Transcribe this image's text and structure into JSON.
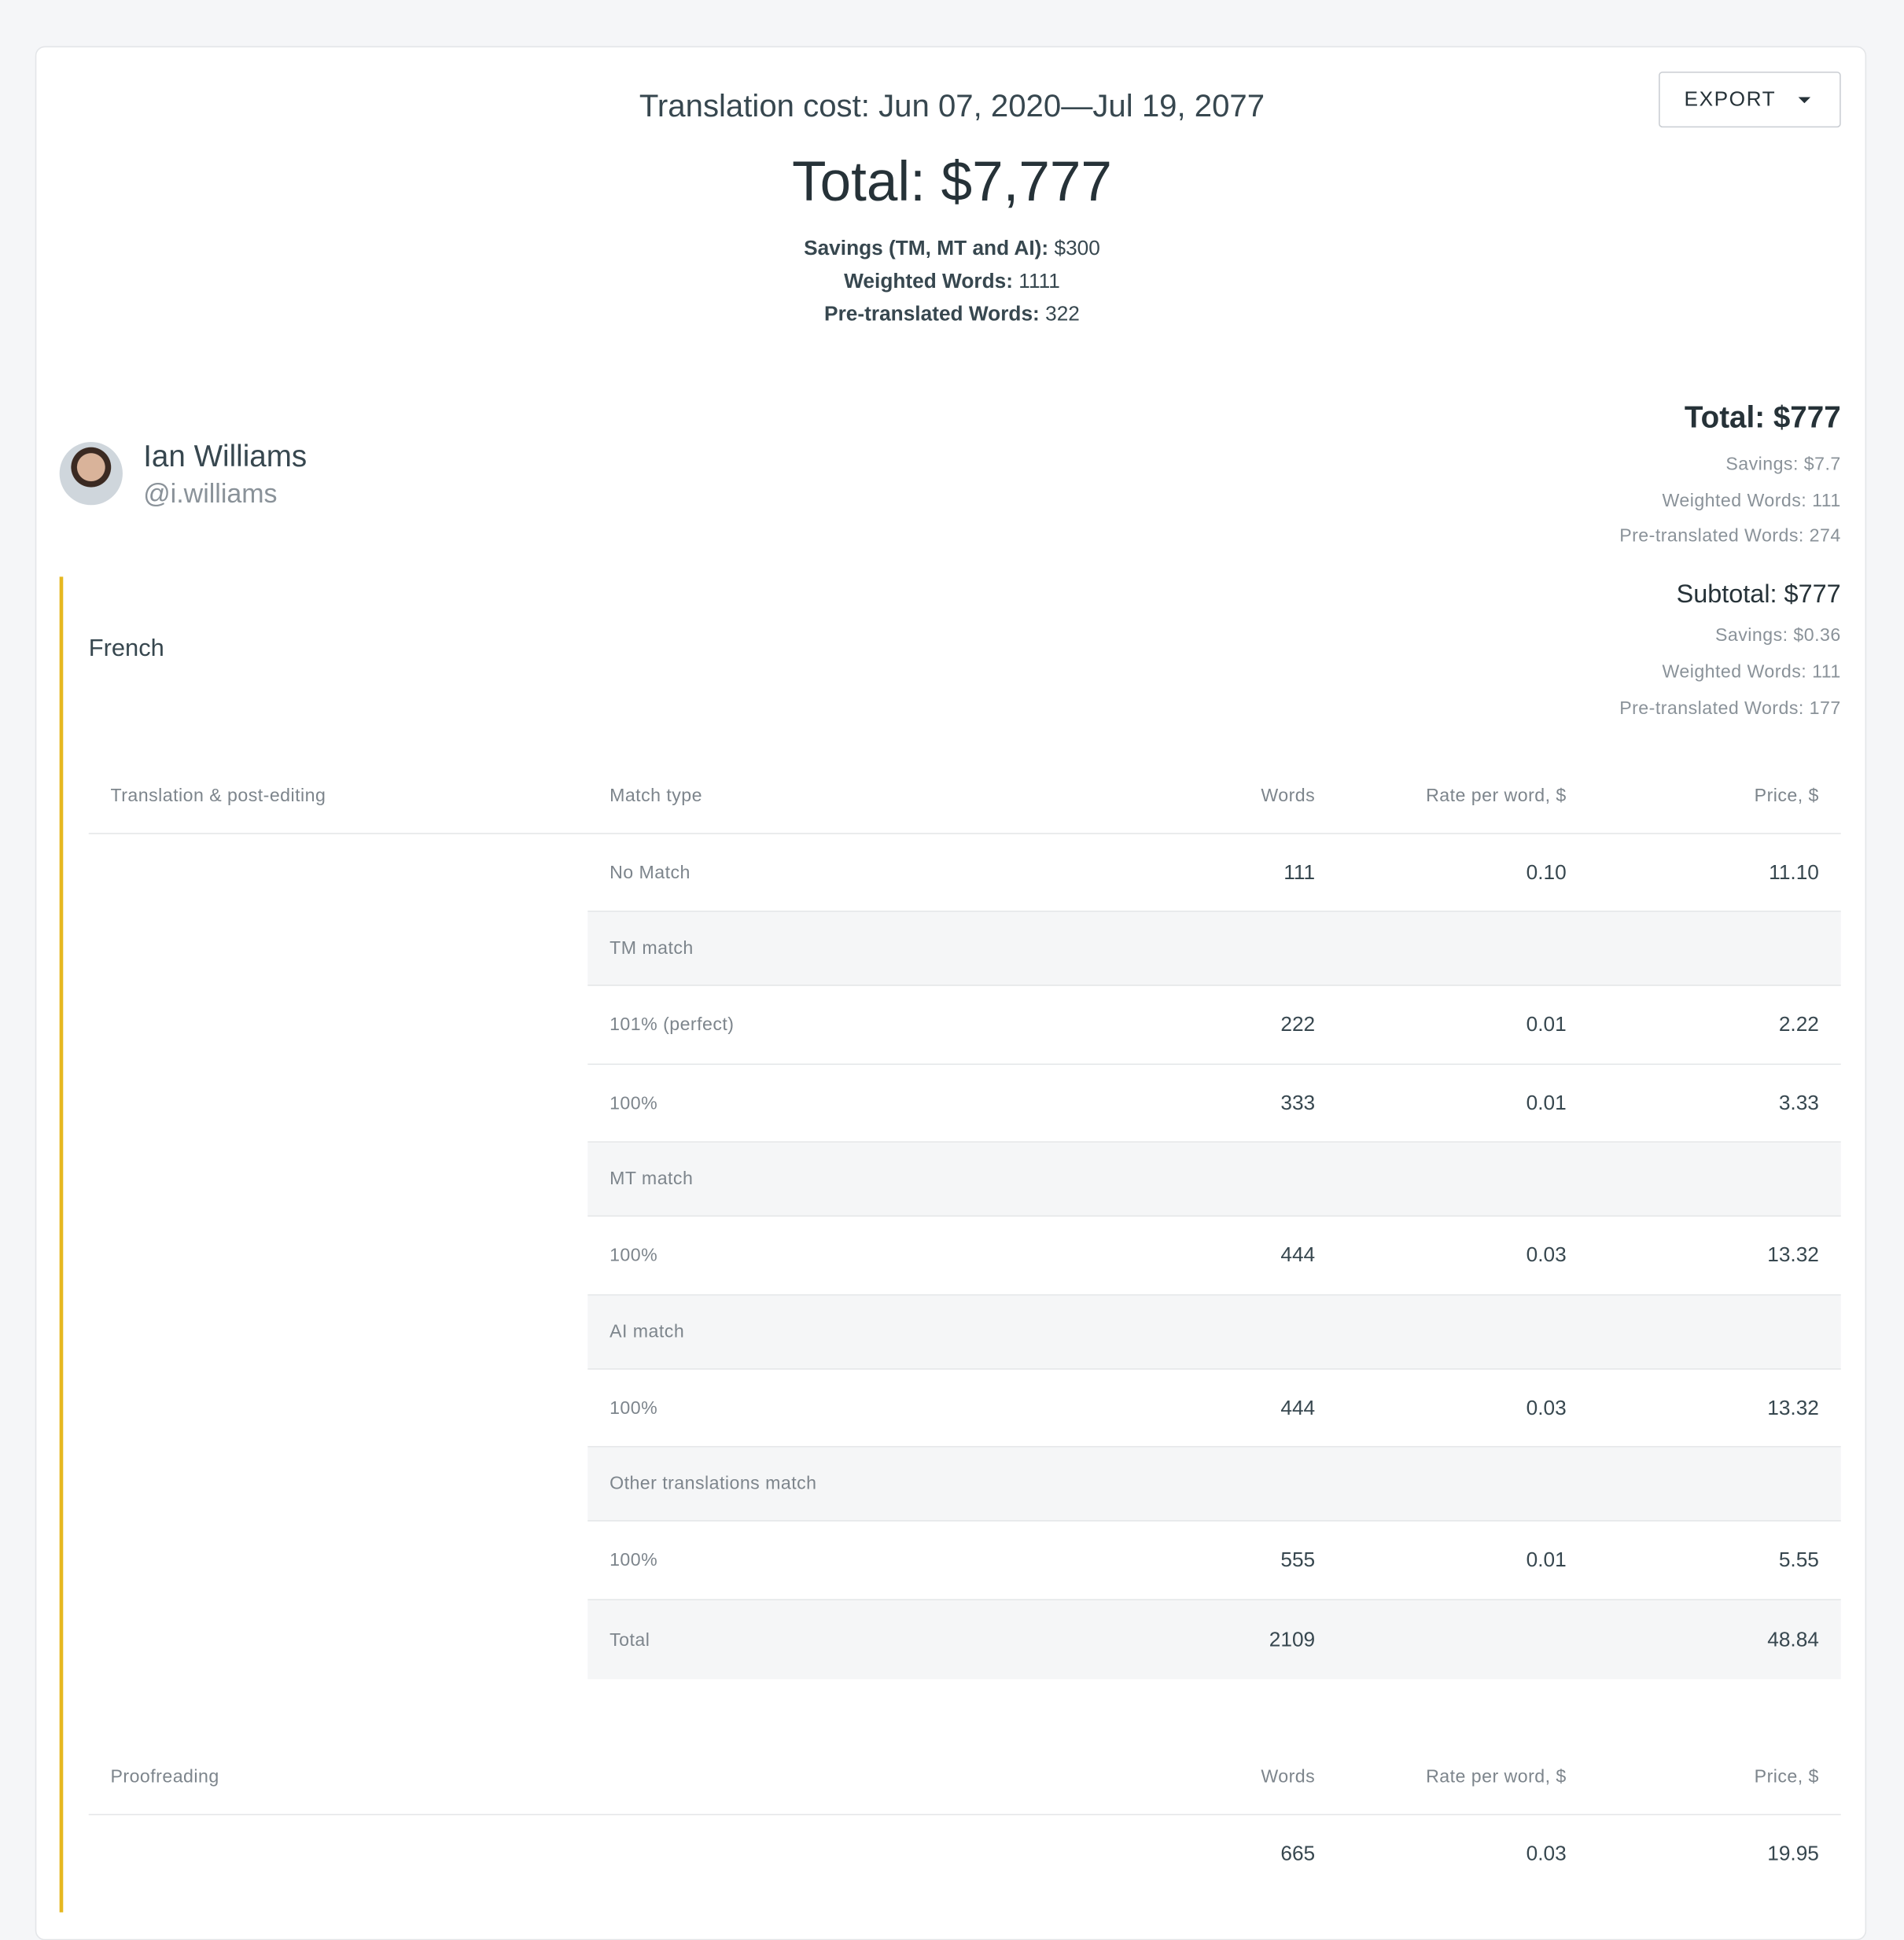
{
  "header": {
    "title": "Translation cost: Jun 07, 2020—Jul 19, 2077",
    "total": "Total: $7,777",
    "export_label": "EXPORT",
    "summary": [
      {
        "label": "Savings (TM, MT and AI):",
        "value": "$300"
      },
      {
        "label": "Weighted Words:",
        "value": "1111"
      },
      {
        "label": "Pre-translated Words:",
        "value": "322"
      }
    ]
  },
  "user": {
    "name": "Ian Williams",
    "handle": "@i.williams",
    "total": "Total: $777",
    "stats": [
      "Savings: $7.7",
      "Weighted Words: 111",
      "Pre-translated Words: 274"
    ]
  },
  "language": {
    "name": "French",
    "subtotal": "Subtotal: $777",
    "stats": [
      "Savings: $0.36",
      "Weighted Words: 111",
      "Pre-translated Words: 177"
    ]
  },
  "translation_table": {
    "section": "Translation & post-editing",
    "headers": {
      "match": "Match type",
      "words": "Words",
      "rate": "Rate per word, $",
      "price": "Price, $"
    },
    "rows": [
      {
        "label": "No Match",
        "words": "111",
        "rate": "0.10",
        "price": "11.10",
        "group": false
      },
      {
        "label": "TM match",
        "group": true
      },
      {
        "label": "101% (perfect)",
        "words": "222",
        "rate": "0.01",
        "price": "2.22",
        "group": false
      },
      {
        "label": "100%",
        "words": "333",
        "rate": "0.01",
        "price": "3.33",
        "group": false
      },
      {
        "label": "MT match",
        "group": true
      },
      {
        "label": "100%",
        "words": "444",
        "rate": "0.03",
        "price": "13.32",
        "group": false
      },
      {
        "label": "AI match",
        "group": true
      },
      {
        "label": "100%",
        "words": "444",
        "rate": "0.03",
        "price": "13.32",
        "group": false
      },
      {
        "label": "Other translations match",
        "group": true
      },
      {
        "label": "100%",
        "words": "555",
        "rate": "0.01",
        "price": "5.55",
        "group": false
      },
      {
        "label": "Total",
        "words": "2109",
        "rate": "",
        "price": "48.84",
        "group": true
      }
    ]
  },
  "proofreading_table": {
    "section": "Proofreading",
    "headers": {
      "words": "Words",
      "rate": "Rate per word, $",
      "price": "Price, $"
    },
    "rows": [
      {
        "words": "665",
        "rate": "0.03",
        "price": "19.95"
      }
    ]
  },
  "colors": {
    "accent_bar": "#e6b820",
    "group_row_bg": "#f5f6f7"
  }
}
